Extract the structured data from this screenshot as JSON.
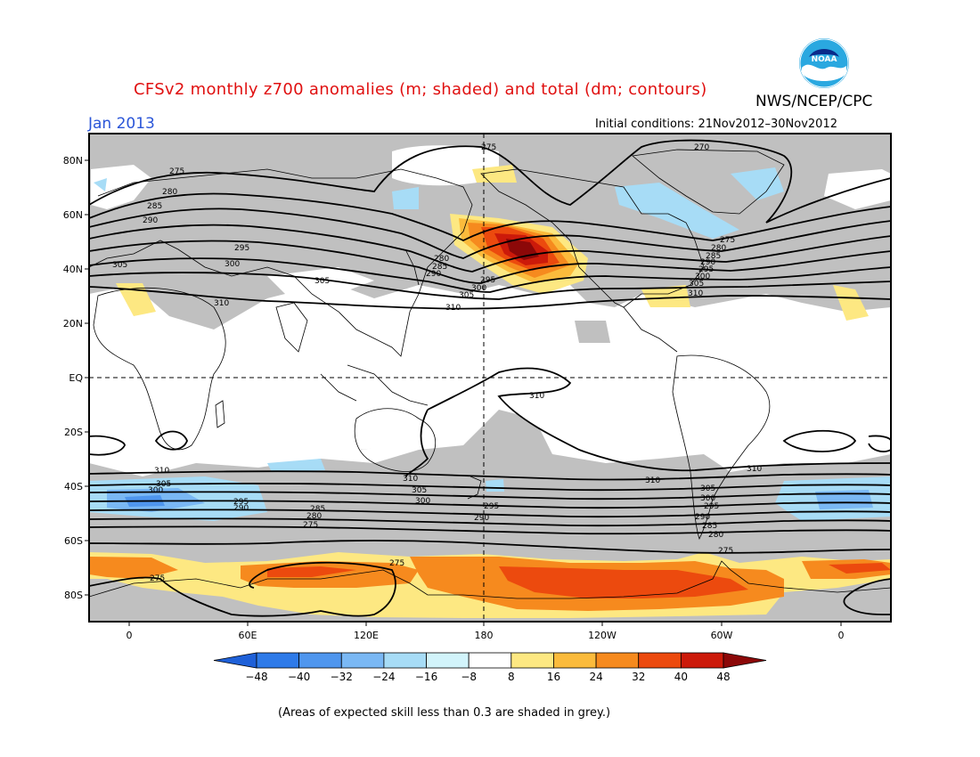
{
  "title": "CFSv2 monthly z700 anomalies (m; shaded) and total (dm; contours)",
  "period": "Jan 2013",
  "agency": "NWS/NCEP/CPC",
  "initial_conditions": "Initial conditions: 21Nov2012–30Nov2012",
  "footnote": "(Areas of expected skill less than 0.3 are shaded in grey.)",
  "logo_text": "NOAA",
  "map": {
    "lon_ticks": [
      "0",
      "60E",
      "120E",
      "180",
      "120W",
      "60W",
      "0"
    ],
    "lat_ticks": [
      "80N",
      "60N",
      "40N",
      "20N",
      "EQ",
      "20S",
      "40S",
      "60S",
      "80S"
    ],
    "colors": {
      "frame": "#000000",
      "low_skill": "#c0c0c0",
      "coast": "#000000"
    },
    "contour_labels": [
      "275",
      "280",
      "285",
      "290",
      "295",
      "300",
      "305",
      "310",
      "275",
      "280",
      "285",
      "290",
      "295",
      "300",
      "305",
      "310",
      "270",
      "275",
      "280",
      "285",
      "290",
      "295",
      "300",
      "305",
      "310",
      "305",
      "300",
      "295",
      "290",
      "285",
      "280",
      "275",
      "310"
    ]
  },
  "colorbar": {
    "levels": [
      "-48",
      "-40",
      "-32",
      "-24",
      "-16",
      "-8",
      "8",
      "16",
      "24",
      "32",
      "40",
      "48"
    ],
    "colors": [
      "#1e60d8",
      "#2e7ae8",
      "#4f96ee",
      "#7ab8f4",
      "#a7dcf6",
      "#d2f4fb",
      "#ffffff",
      "#fde882",
      "#fbbb3c",
      "#f68a1e",
      "#ec4a0e",
      "#cc1a0a",
      "#8c0808"
    ]
  }
}
